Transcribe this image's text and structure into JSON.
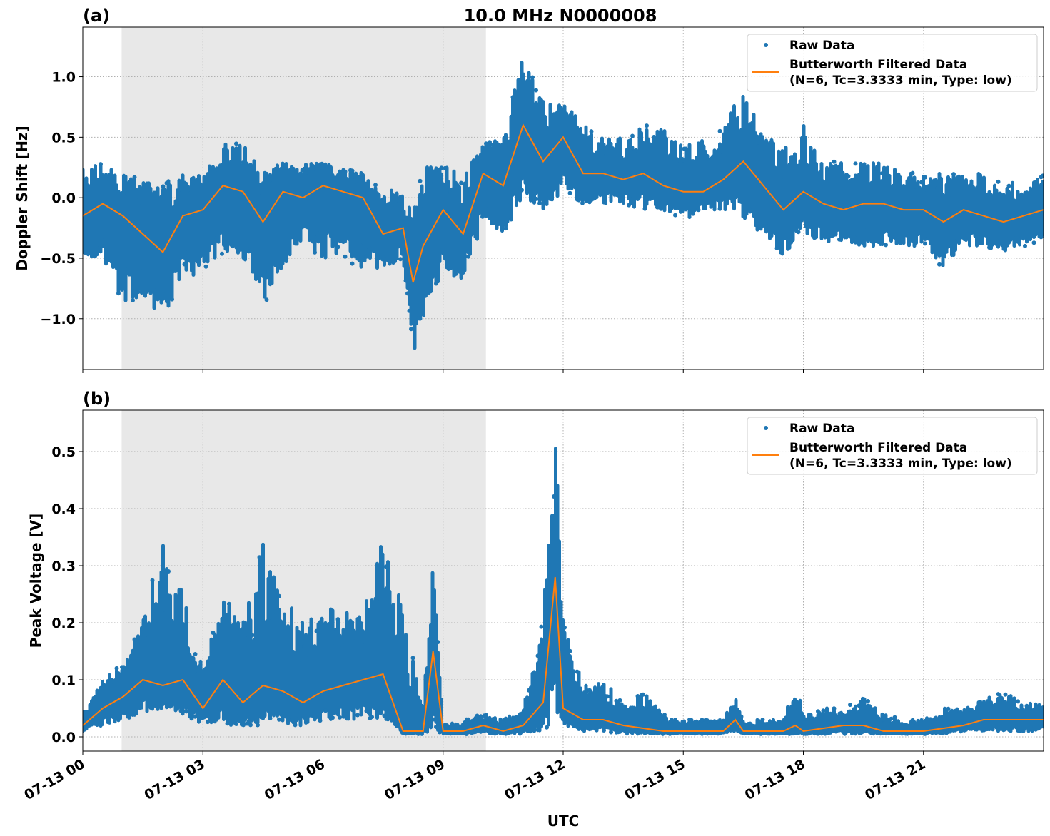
{
  "figure_title": "10.0 MHz N0000008",
  "colors": {
    "raw": "#1f77b4",
    "filtered": "#ff7f0e",
    "shade": "#e8e8e8",
    "grid": "#b0b0b0"
  },
  "x_ticks": [
    "07-13 00",
    "07-13 03",
    "07-13 06",
    "07-13 09",
    "07-13 12",
    "07-13 15",
    "07-13 18",
    "07-13 21"
  ],
  "x_tick_hours": [
    0,
    3,
    6,
    9,
    12,
    15,
    18,
    21
  ],
  "xlabel": "UTC",
  "chart_data": [
    {
      "type": "scatter+line",
      "panel_label": "(a)",
      "ylabel": "Doppler Shift [Hz]",
      "xlim_hours": [
        0,
        24
      ],
      "ylim": [
        -1.42,
        1.41
      ],
      "y_ticks": [
        -1.0,
        -0.5,
        0.0,
        0.5,
        1.0
      ],
      "y_tick_labels": [
        "−1.0",
        "−0.5",
        "0.0",
        "0.5",
        "1.0"
      ],
      "grid": true,
      "shaded_interval_hours": [
        0.97,
        10.07
      ],
      "legend": {
        "position": "top-right",
        "entries": [
          "Raw Data",
          "Butterworth Filtered Data",
          "(N=6, Tc=3.3333 min, Type: low)"
        ]
      },
      "x_hours": [
        0,
        0.5,
        1,
        1.5,
        2,
        2.5,
        3,
        3.5,
        4,
        4.5,
        5,
        5.5,
        6,
        6.5,
        7,
        7.5,
        8,
        8.25,
        8.5,
        9,
        9.5,
        10,
        10.5,
        11,
        11.5,
        12,
        12.5,
        13,
        13.5,
        14,
        14.5,
        15,
        15.5,
        16,
        16.5,
        17,
        17.5,
        18,
        18.5,
        19,
        19.5,
        20,
        20.5,
        21,
        21.5,
        22,
        22.5,
        23,
        23.5,
        24
      ],
      "series": [
        {
          "name": "Butterworth Filtered Data",
          "values": [
            -0.15,
            -0.05,
            -0.15,
            -0.3,
            -0.45,
            -0.15,
            -0.1,
            0.1,
            0.05,
            -0.2,
            0.05,
            0.0,
            0.1,
            0.05,
            0.0,
            -0.3,
            -0.25,
            -0.7,
            -0.4,
            -0.1,
            -0.3,
            0.2,
            0.1,
            0.6,
            0.3,
            0.5,
            0.2,
            0.2,
            0.15,
            0.2,
            0.1,
            0.05,
            0.05,
            0.15,
            0.3,
            0.1,
            -0.1,
            0.05,
            -0.05,
            -0.1,
            -0.05,
            -0.05,
            -0.1,
            -0.1,
            -0.2,
            -0.1,
            -0.15,
            -0.2,
            -0.15,
            -0.1
          ]
        },
        {
          "name": "Raw Data",
          "min": [
            -0.5,
            -0.5,
            -0.9,
            -0.8,
            -1.0,
            -0.7,
            -0.6,
            -0.5,
            -0.5,
            -0.9,
            -0.6,
            -0.4,
            -0.5,
            -0.5,
            -0.6,
            -0.6,
            -0.5,
            -1.3,
            -1.0,
            -0.6,
            -0.7,
            -0.2,
            -0.3,
            0.0,
            -0.1,
            0.0,
            -0.05,
            -0.05,
            -0.05,
            -0.1,
            -0.1,
            -0.2,
            -0.1,
            -0.1,
            -0.2,
            -0.3,
            -0.5,
            -0.3,
            -0.4,
            -0.4,
            -0.4,
            -0.4,
            -0.4,
            -0.4,
            -0.6,
            -0.4,
            -0.4,
            -0.45,
            -0.4,
            -0.4
          ],
          "max": [
            0.25,
            0.3,
            0.2,
            0.15,
            0.15,
            0.2,
            0.2,
            0.45,
            0.45,
            0.2,
            0.3,
            0.3,
            0.3,
            0.25,
            0.2,
            0.05,
            0.1,
            -0.1,
            0.25,
            0.3,
            0.2,
            0.45,
            0.5,
            1.2,
            0.8,
            0.8,
            0.6,
            0.5,
            0.5,
            0.6,
            0.6,
            0.5,
            0.5,
            0.6,
            0.9,
            0.6,
            0.4,
            0.6,
            0.3,
            0.3,
            0.3,
            0.3,
            0.2,
            0.25,
            0.2,
            0.2,
            0.2,
            0.15,
            0.1,
            0.2
          ]
        }
      ]
    },
    {
      "type": "scatter+line",
      "panel_label": "(b)",
      "ylabel": "Peak Voltage [V]",
      "xlim_hours": [
        0,
        24
      ],
      "ylim": [
        -0.025,
        0.5725
      ],
      "y_ticks": [
        0.0,
        0.1,
        0.2,
        0.3,
        0.4,
        0.5
      ],
      "y_tick_labels": [
        "0.0",
        "0.1",
        "0.2",
        "0.3",
        "0.4",
        "0.5"
      ],
      "grid": true,
      "shaded_interval_hours": [
        0.97,
        10.07
      ],
      "legend": {
        "position": "top-right",
        "entries": [
          "Raw Data",
          "Butterworth Filtered Data",
          "(N=6, Tc=3.3333 min, Type: low)"
        ]
      },
      "x_hours": [
        0,
        0.5,
        1,
        1.5,
        2,
        2.5,
        3,
        3.5,
        4,
        4.5,
        5,
        5.5,
        6,
        6.5,
        7,
        7.5,
        8,
        8.5,
        8.75,
        9,
        9.5,
        10,
        10.5,
        11,
        11.5,
        11.8,
        12,
        12.5,
        13,
        13.5,
        14,
        14.5,
        15,
        15.5,
        16,
        16.3,
        16.5,
        17,
        17.5,
        17.8,
        18,
        18.5,
        19,
        19.5,
        20,
        20.5,
        21,
        21.5,
        22,
        22.5,
        23,
        23.5,
        24
      ],
      "series": [
        {
          "name": "Butterworth Filtered Data",
          "values": [
            0.02,
            0.05,
            0.07,
            0.1,
            0.09,
            0.1,
            0.05,
            0.1,
            0.06,
            0.09,
            0.08,
            0.06,
            0.08,
            0.09,
            0.1,
            0.11,
            0.01,
            0.01,
            0.15,
            0.01,
            0.01,
            0.02,
            0.01,
            0.02,
            0.06,
            0.28,
            0.05,
            0.03,
            0.03,
            0.02,
            0.015,
            0.01,
            0.01,
            0.01,
            0.01,
            0.03,
            0.01,
            0.01,
            0.01,
            0.02,
            0.01,
            0.015,
            0.02,
            0.02,
            0.01,
            0.01,
            0.01,
            0.015,
            0.02,
            0.03,
            0.03,
            0.03,
            0.03
          ]
        },
        {
          "name": "Raw Data",
          "min": [
            0.01,
            0.02,
            0.03,
            0.04,
            0.04,
            0.04,
            0.02,
            0.02,
            0.02,
            0.02,
            0.02,
            0.02,
            0.03,
            0.03,
            0.03,
            0.03,
            0.005,
            0.005,
            0.01,
            0.005,
            0.005,
            0.005,
            0.005,
            0.005,
            0.01,
            0.02,
            0.02,
            0.01,
            0.01,
            0.005,
            0.005,
            0.005,
            0.005,
            0.005,
            0.005,
            0.01,
            0.005,
            0.005,
            0.005,
            0.005,
            0.005,
            0.005,
            0.005,
            0.005,
            0.005,
            0.005,
            0.005,
            0.005,
            0.01,
            0.01,
            0.01,
            0.01,
            0.01
          ],
          "max": [
            0.04,
            0.1,
            0.13,
            0.2,
            0.37,
            0.25,
            0.12,
            0.25,
            0.2,
            0.34,
            0.25,
            0.2,
            0.23,
            0.22,
            0.22,
            0.36,
            0.23,
            0.05,
            0.32,
            0.02,
            0.03,
            0.04,
            0.03,
            0.05,
            0.21,
            0.54,
            0.2,
            0.09,
            0.1,
            0.06,
            0.08,
            0.04,
            0.03,
            0.03,
            0.03,
            0.07,
            0.03,
            0.03,
            0.03,
            0.1,
            0.04,
            0.05,
            0.05,
            0.07,
            0.04,
            0.03,
            0.03,
            0.05,
            0.05,
            0.07,
            0.08,
            0.06,
            0.06
          ]
        }
      ]
    }
  ]
}
